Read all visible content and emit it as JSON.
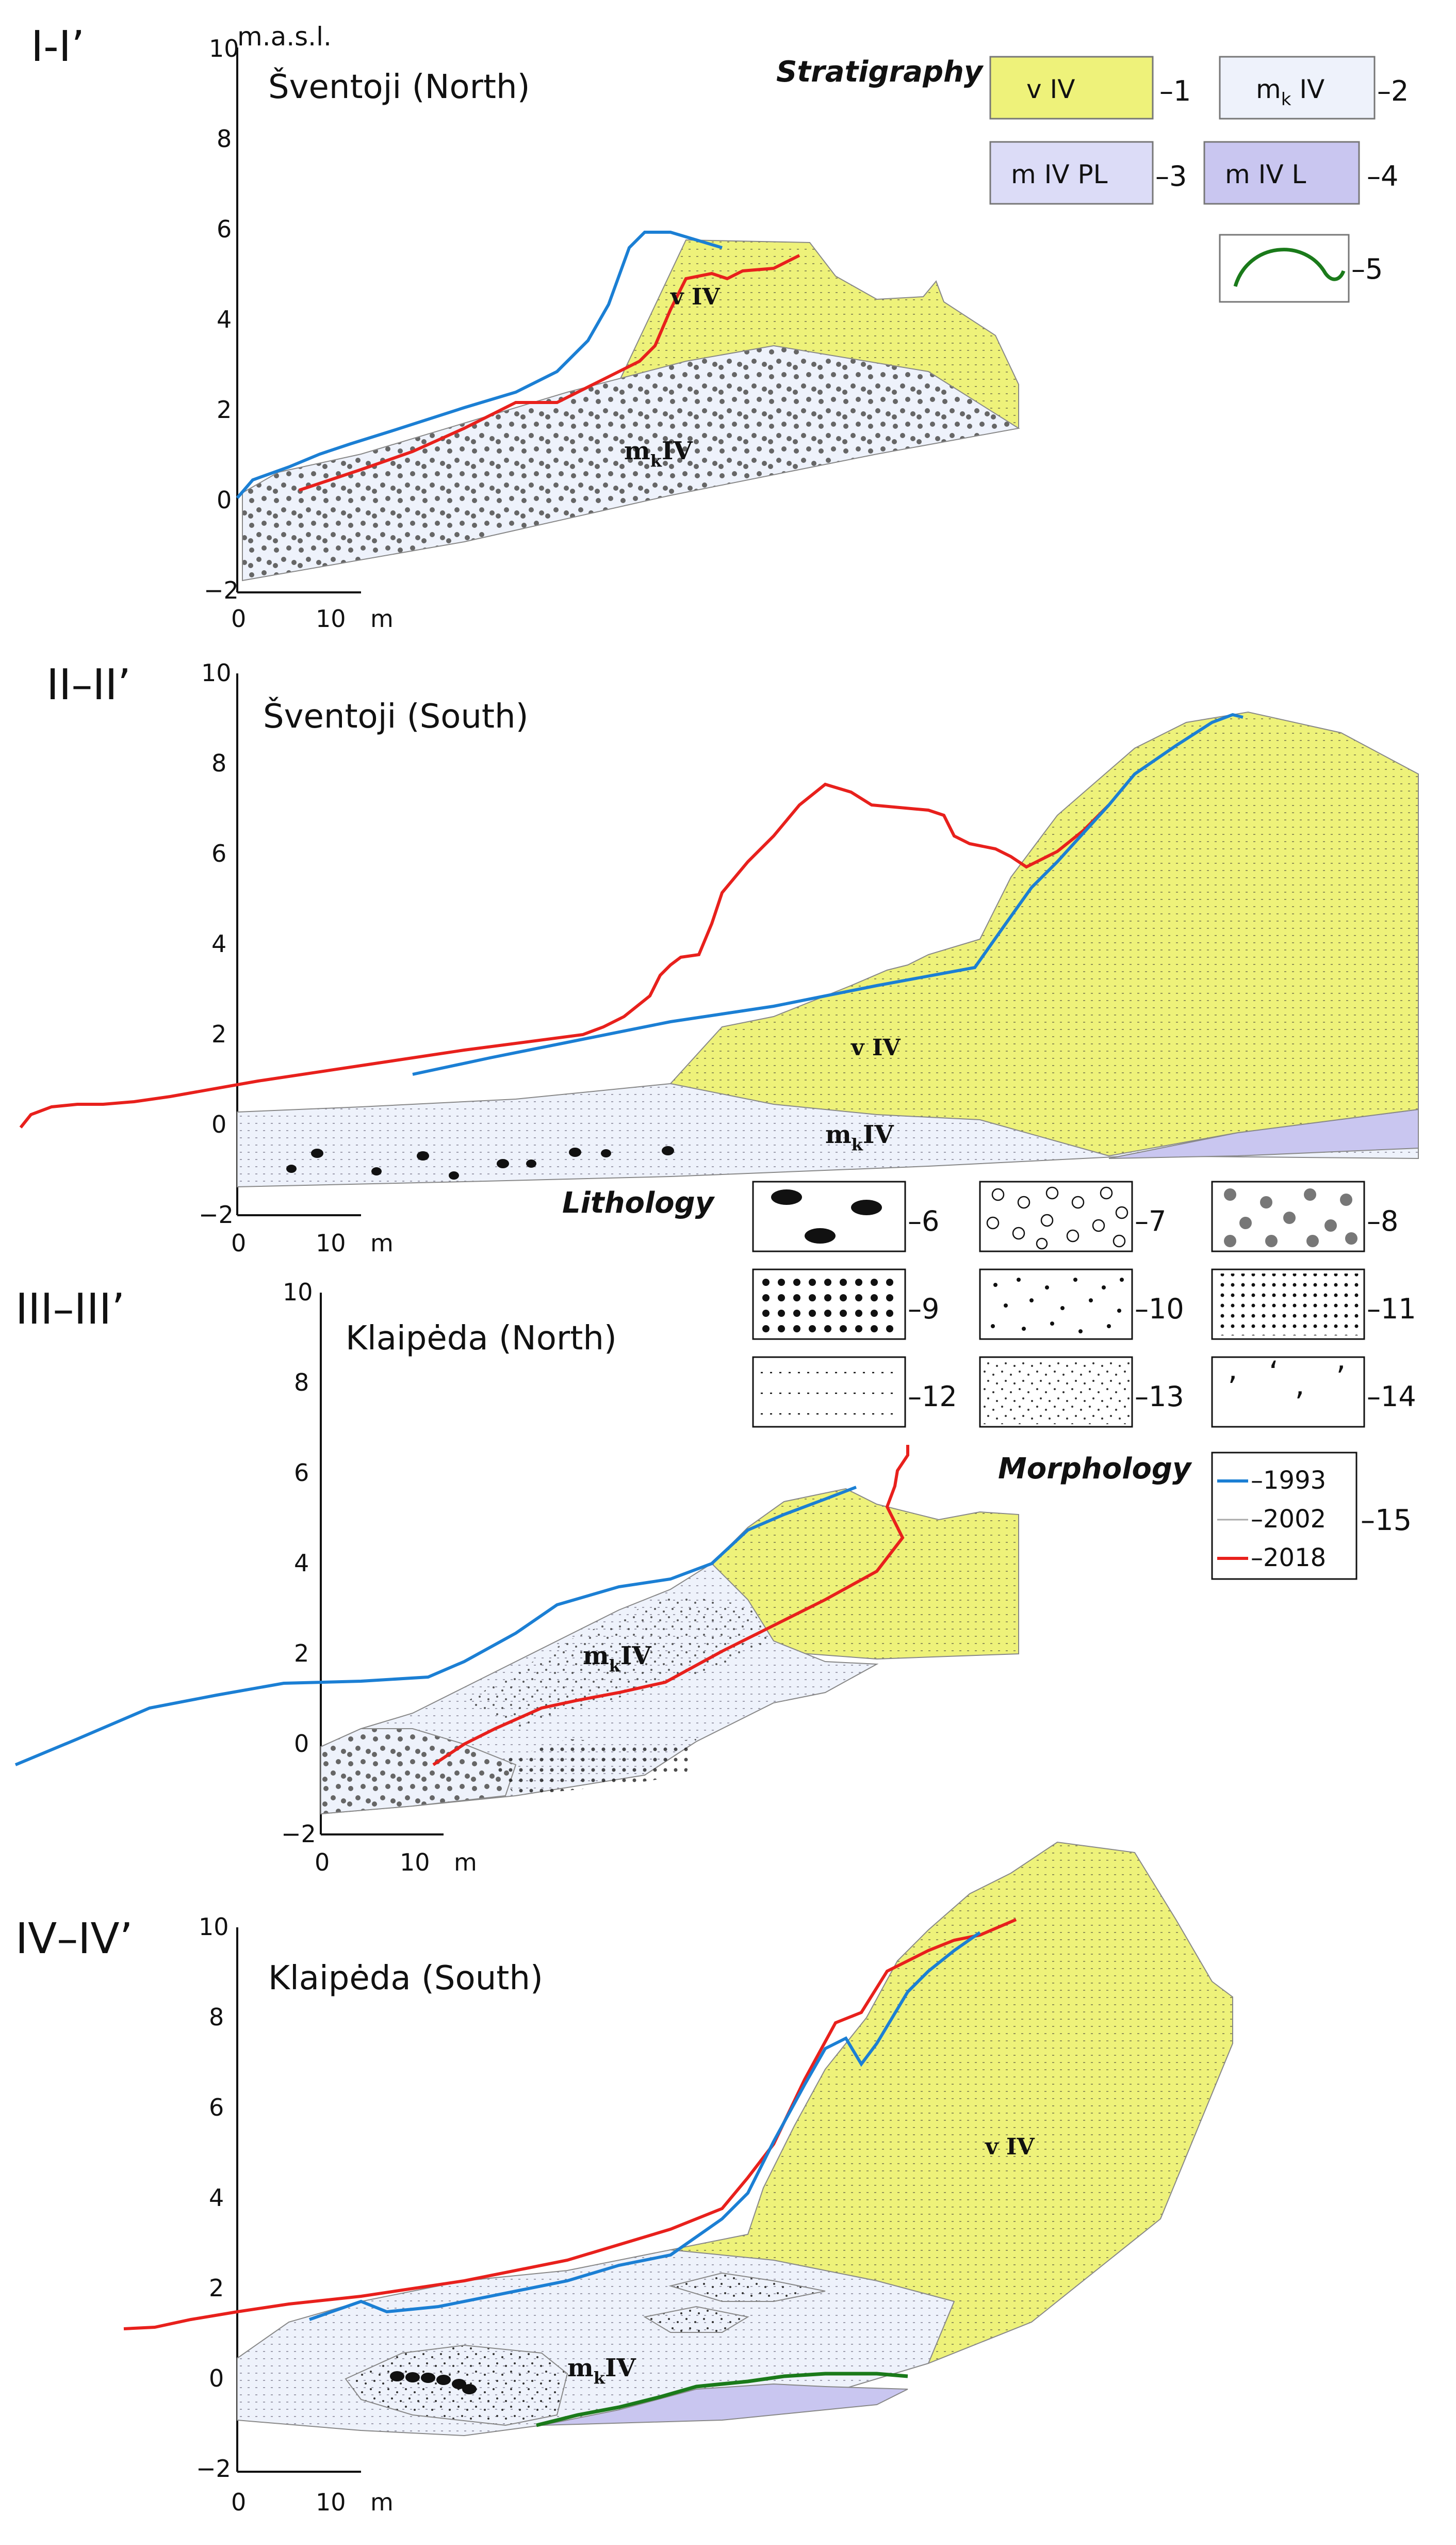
{
  "figure": {
    "ylabel_unit": "m.a.s.l.",
    "xlabel_unit": "m",
    "panels": [
      {
        "id": "I-I’",
        "title": "Šventoji (North)",
        "unit_label_top": "m.a.s.l.",
        "y_ticks": [
          "10",
          "8",
          "6",
          "4",
          "2",
          "0",
          "−2"
        ],
        "x_ticks": [
          "0",
          "10",
          "m"
        ],
        "unit_labels": [
          {
            "main": "v IV",
            "sub": ""
          },
          {
            "main": "m",
            "sub": "k",
            "after": "IV"
          }
        ]
      },
      {
        "id": "II–II’",
        "title": "Šventoji (South)",
        "y_ticks": [
          "10",
          "8",
          "6",
          "4",
          "2",
          "0",
          "−2"
        ],
        "x_ticks": [
          "0",
          "10",
          "m"
        ],
        "unit_labels": [
          {
            "main": "v IV",
            "sub": ""
          },
          {
            "main": "m",
            "sub": "k",
            "after": "IV"
          }
        ]
      },
      {
        "id": "III–III’",
        "title": "Klaipėda (North)",
        "y_ticks": [
          "10",
          "8",
          "6",
          "4",
          "2",
          "0",
          "−2"
        ],
        "x_ticks": [
          "0",
          "10",
          "m"
        ],
        "unit_labels": [
          {
            "main": "m",
            "sub": "k",
            "after": "IV"
          }
        ]
      },
      {
        "id": "IV–IV’",
        "title": "Klaipėda (South)",
        "y_ticks": [
          "10",
          "8",
          "6",
          "4",
          "2",
          "0",
          "−2"
        ],
        "x_ticks": [
          "0",
          "10",
          "m"
        ],
        "unit_labels": [
          {
            "main": "v IV",
            "sub": ""
          },
          {
            "main": "m",
            "sub": "k",
            "after": "IV"
          }
        ]
      }
    ]
  },
  "legend": {
    "stratigraphy_title": "Stratigraphy",
    "lithology_title": "Lithology",
    "morphology_title": "Morphology",
    "stratigraphy": [
      {
        "label": "v IV",
        "num": "–1",
        "color": "#eef27a"
      },
      {
        "label_main": "m",
        "label_sub": "k",
        "label_after": " IV",
        "num": "–2",
        "color": "#eef2fb"
      },
      {
        "label": "m IV PL",
        "num": "–3",
        "color": "#dcdcf7"
      },
      {
        "label": "m IV L",
        "num": "–4",
        "color": "#c9c6f0"
      },
      {
        "label": "",
        "num": "–5",
        "color": "#1a7a1a"
      }
    ],
    "lithology": [
      {
        "num": "–6",
        "pattern": "ellipses"
      },
      {
        "num": "–7",
        "pattern": "open-circles"
      },
      {
        "num": "–8",
        "pattern": "grey-dots"
      },
      {
        "num": "–9",
        "pattern": "big-black-dots"
      },
      {
        "num": "–10",
        "pattern": "scattered-dots"
      },
      {
        "num": "–11",
        "pattern": "dot-grid"
      },
      {
        "num": "–12",
        "pattern": "dashed-lines"
      },
      {
        "num": "–13",
        "pattern": "fine-dots"
      },
      {
        "num": "–14",
        "pattern": "commas"
      }
    ],
    "morphology": [
      {
        "label": "–1993",
        "color": "#1b7fd4"
      },
      {
        "label": "–2002",
        "color": "#aaaaaa"
      },
      {
        "label": "–2018",
        "color": "#e8201c"
      }
    ],
    "morphology_num": "–15"
  }
}
